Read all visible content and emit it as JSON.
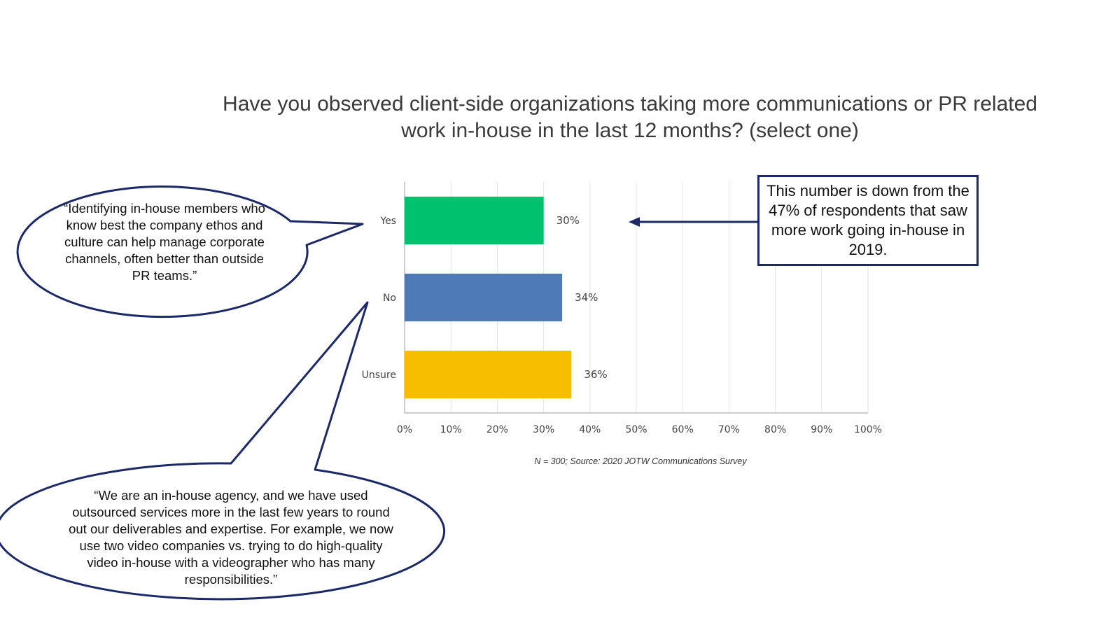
{
  "title": {
    "line1": "Have you observed client-side organizations taking more communications or PR related",
    "line2": "work in-house in the last 12 months? (select one)"
  },
  "callout": "This number is down from the 47% of respondents that saw more work going in-house in 2019.",
  "quotes": [
    "“Identifying in-house members who know best the company ethos and culture can help manage corporate channels, often better than outside PR teams.”",
    "“We are an in-house agency, and we have used outsourced services more in the last few years to round out our deliverables and expertise. For example, we now use two video companies vs. trying to do high-quality video in-house with a videographer who has many responsibilities.”"
  ],
  "source": "N = 300; Source: 2020 JOTW Communications Survey",
  "colors": {
    "callout_border": "#1b2a66",
    "grid": "#e6e6e6",
    "axis": "#bdbdbd"
  },
  "chart_data": {
    "type": "bar",
    "orientation": "horizontal",
    "categories": [
      "Yes",
      "No",
      "Unsure"
    ],
    "values": [
      30,
      34,
      36
    ],
    "value_labels": [
      "30%",
      "34%",
      "36%"
    ],
    "colors": [
      "#00c16e",
      "#4f7ab8",
      "#f7be00"
    ],
    "xlim": [
      0,
      100
    ],
    "x_ticks": [
      0,
      10,
      20,
      30,
      40,
      50,
      60,
      70,
      80,
      90,
      100
    ],
    "x_tick_labels": [
      "0%",
      "10%",
      "20%",
      "30%",
      "40%",
      "50%",
      "60%",
      "70%",
      "80%",
      "90%",
      "100%"
    ],
    "grid": true
  }
}
